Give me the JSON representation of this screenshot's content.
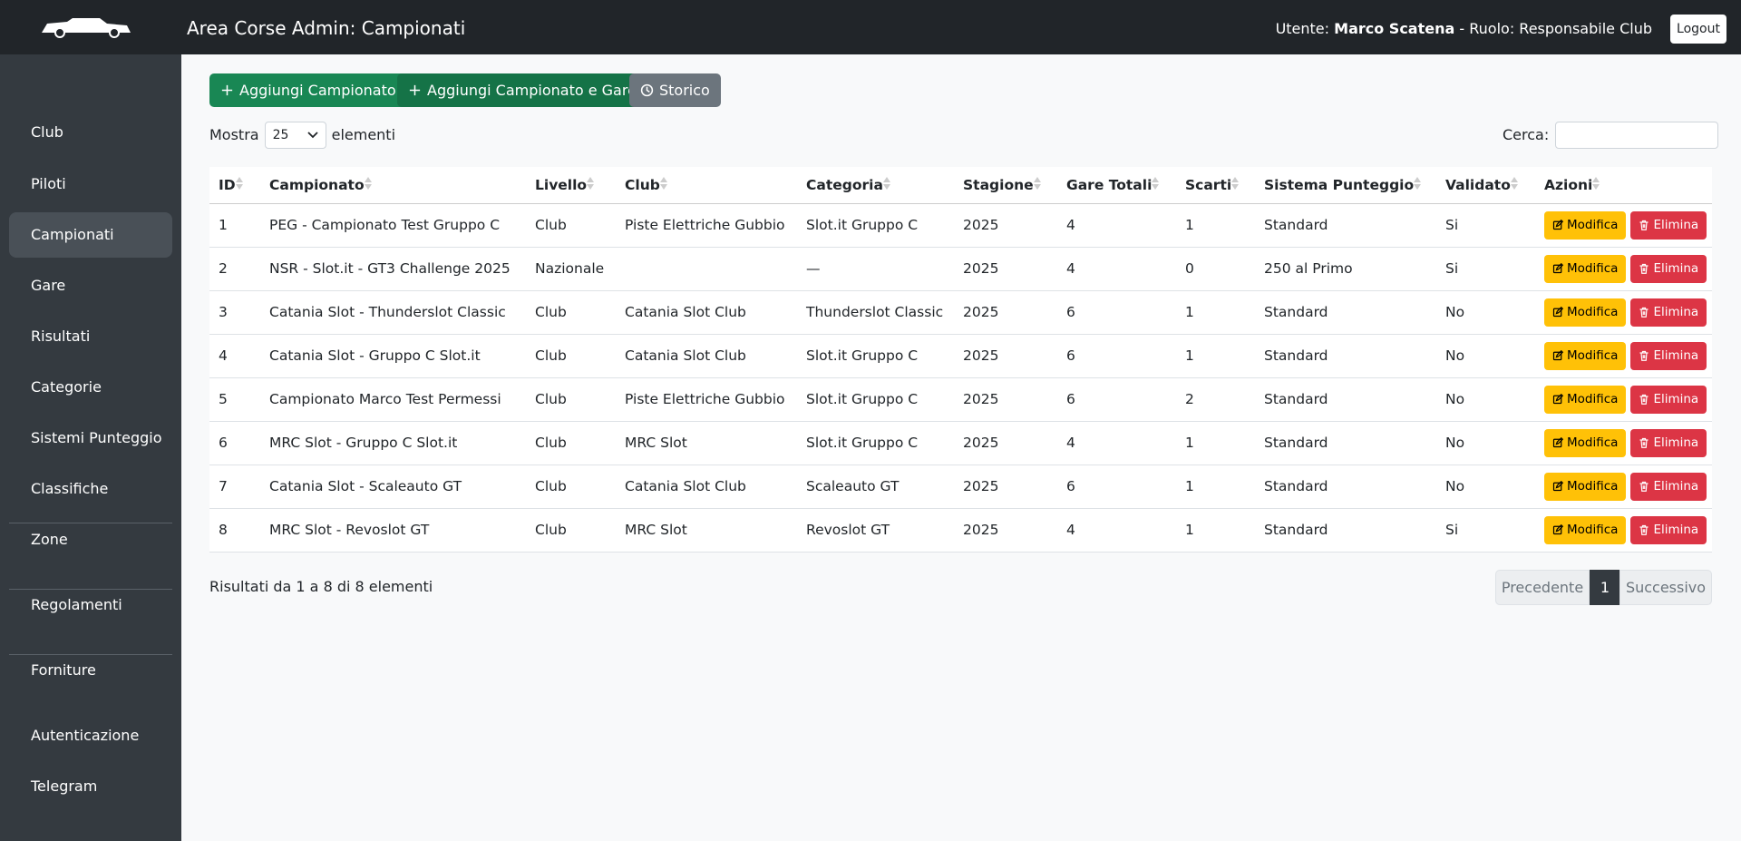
{
  "header": {
    "title": "Area Corse Admin: Campionati",
    "user_label": "Utente:",
    "user_name": "Marco Scatena",
    "separator": "-",
    "role": "Ruolo: Responsabile Club",
    "logout": "Logout"
  },
  "sidebar": {
    "groups": [
      [
        {
          "label": "Club"
        },
        {
          "label": "Piloti"
        },
        {
          "label": "Campionati",
          "active": true
        },
        {
          "label": "Gare"
        },
        {
          "label": "Risultati"
        },
        {
          "label": "Categorie"
        },
        {
          "label": "Sistemi Punteggio"
        },
        {
          "label": "Classifiche"
        },
        {
          "label": "Zone"
        }
      ],
      [
        {
          "label": "Regolamenti"
        }
      ],
      [
        {
          "label": "Forniture"
        }
      ],
      [
        {
          "label": "Autenticazione"
        },
        {
          "label": "Telegram"
        }
      ]
    ]
  },
  "toolbar": {
    "buttons": [
      {
        "label": "Aggiungi Campionato",
        "icon": "plus",
        "color": "#198754"
      },
      {
        "label": "Aggiungi Campionato e Gare",
        "icon": "plus",
        "color": "#157347"
      },
      {
        "label": "Storico",
        "icon": "clock",
        "color": "#6c757d"
      }
    ]
  },
  "length": {
    "before": "Mostra",
    "value": 25,
    "after": "elementi"
  },
  "search": {
    "label": "Cerca:"
  },
  "table": {
    "columns": [
      "ID",
      "Campionato",
      "Livello",
      "Club",
      "Categoria",
      "Stagione",
      "Gare Totali",
      "Scarti",
      "Sistema Punteggio",
      "Validato",
      "Azioni"
    ],
    "rows": [
      [
        1,
        "PEG - Campionato Test Gruppo C",
        "Club",
        "Piste Elettriche Gubbio",
        "Slot.it Gruppo C",
        2025,
        4,
        1,
        "Standard",
        "Si"
      ],
      [
        2,
        "NSR - Slot.it - GT3 Challenge 2025",
        "Nazionale",
        null,
        "—",
        2025,
        4,
        0,
        "250 al Primo",
        "Si"
      ],
      [
        3,
        "Catania Slot - Thunderslot Classic",
        "Club",
        "Catania Slot Club",
        "Thunderslot Classic",
        2025,
        6,
        1,
        "Standard",
        "No"
      ],
      [
        4,
        "Catania Slot - Gruppo C Slot.it",
        "Club",
        "Catania Slot Club",
        "Slot.it Gruppo C",
        2025,
        6,
        1,
        "Standard",
        "No"
      ],
      [
        5,
        "Campionato Marco Test Permessi",
        "Club",
        "Piste Elettriche Gubbio",
        "Slot.it Gruppo C",
        2025,
        6,
        2,
        "Standard",
        "No"
      ],
      [
        6,
        "MRC Slot - Gruppo C Slot.it",
        "Club",
        "MRC Slot",
        "Slot.it Gruppo C",
        2025,
        4,
        1,
        "Standard",
        "No"
      ],
      [
        7,
        "Catania Slot - Scaleauto GT",
        "Club",
        "Catania Slot Club",
        "Scaleauto GT",
        2025,
        6,
        1,
        "Standard",
        "No"
      ],
      [
        8,
        "MRC Slot - Revoslot GT",
        "Club",
        "MRC Slot",
        "Revoslot GT",
        2025,
        4,
        1,
        "Standard",
        "Si"
      ]
    ],
    "actions": [
      {
        "label": "Modifica",
        "icon": "edit",
        "color": "#ffc107",
        "text_color": "#000"
      },
      {
        "label": "Elimina",
        "icon": "trash",
        "color": "#dc3545",
        "text_color": "#fff"
      }
    ]
  },
  "footer": {
    "info": "Risultati da 1 a 8 di 8 elementi",
    "pagination": [
      {
        "label": "Precedente"
      },
      {
        "label": "1",
        "active": true
      },
      {
        "label": "Successivo"
      }
    ]
  }
}
